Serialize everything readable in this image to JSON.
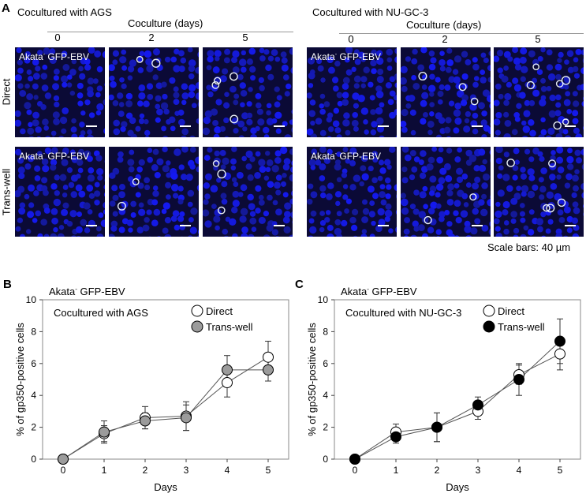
{
  "panel_a": {
    "letter": "A",
    "groups": [
      {
        "title": "Cocultured with AGS",
        "axis_title": "Coculture (days)",
        "days": [
          "0",
          "2",
          "5"
        ]
      },
      {
        "title": "Cocultured with NU-GC-3",
        "axis_title": "Coculture (days)",
        "days": [
          "0",
          "2",
          "5"
        ]
      }
    ],
    "row_labels": [
      "Direct",
      "Trans-well"
    ],
    "tile_label_prefix": "Akata",
    "tile_label_sup": "-",
    "tile_label_suffix": " GFP-EBV",
    "scale_text": "Scale bars: 40 µm"
  },
  "chart_data": [
    {
      "panel": "B",
      "type": "line",
      "title": "Akata- GFP-EBV",
      "title_prefix": "Akata",
      "title_sup": "-",
      "title_suffix": " GFP-EBV",
      "inner_title": "Cocultured with AGS",
      "xlabel": "Days",
      "ylabel": "% of gp350-positive cells",
      "x": [
        0,
        1,
        2,
        3,
        4,
        5
      ],
      "xlim": [
        -0.5,
        5.5
      ],
      "ylim": [
        0,
        10
      ],
      "xticks": [
        "0",
        "1",
        "2",
        "3",
        "4",
        "5"
      ],
      "yticks": [
        "0",
        "2",
        "4",
        "6",
        "8",
        "10"
      ],
      "legend_position": "top-right",
      "series": [
        {
          "name": "Direct",
          "fill": "#ffffff",
          "values": [
            0,
            1.6,
            2.6,
            2.7,
            4.8,
            6.4
          ],
          "errors": [
            0,
            0.5,
            0.7,
            0.9,
            0.9,
            1.0
          ]
        },
        {
          "name": "Trans-well",
          "fill": "#9b9b9b",
          "values": [
            0,
            1.7,
            2.4,
            2.6,
            5.6,
            5.6
          ],
          "errors": [
            0,
            0.7,
            0.5,
            0.8,
            0.9,
            0.7
          ]
        }
      ]
    },
    {
      "panel": "C",
      "type": "line",
      "title": "Akata- GFP-EBV",
      "title_prefix": "Akata",
      "title_sup": "-",
      "title_suffix": " GFP-EBV",
      "inner_title": "Cocultured with NU-GC-3",
      "xlabel": "Days",
      "ylabel": "% of gp350-positive cells",
      "x": [
        0,
        1,
        2,
        3,
        4,
        5
      ],
      "xlim": [
        -0.5,
        5.5
      ],
      "ylim": [
        0,
        10
      ],
      "xticks": [
        "0",
        "1",
        "2",
        "3",
        "4",
        "5"
      ],
      "yticks": [
        "0",
        "2",
        "4",
        "6",
        "8",
        "10"
      ],
      "legend_position": "top-right",
      "series": [
        {
          "name": "Direct",
          "fill": "#ffffff",
          "values": [
            0,
            1.7,
            2.0,
            3.0,
            5.3,
            6.6
          ],
          "errors": [
            0,
            0.5,
            0.9,
            0.5,
            0.6,
            1.0
          ]
        },
        {
          "name": "Trans-well",
          "fill": "#000000",
          "values": [
            0,
            1.4,
            2.0,
            3.4,
            5.0,
            7.4
          ],
          "errors": [
            0,
            0.4,
            0.9,
            0.5,
            1.0,
            1.4
          ]
        }
      ]
    }
  ]
}
